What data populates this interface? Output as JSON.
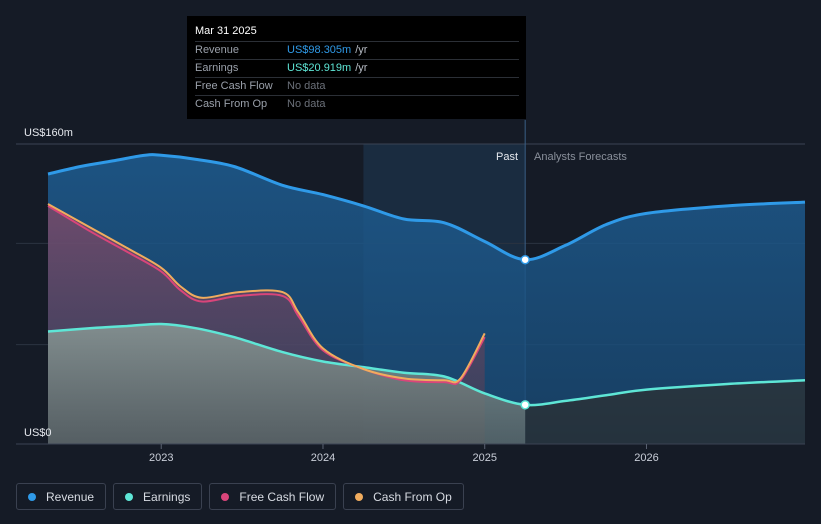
{
  "tooltip": {
    "date": "Mar 31 2025",
    "rows": [
      {
        "label": "Revenue",
        "value": "US$98.305m",
        "unit": "/yr",
        "color": "#2f9ae8"
      },
      {
        "label": "Earnings",
        "value": "US$20.919m",
        "unit": "/yr",
        "color": "#5ee6d6"
      },
      {
        "label": "Free Cash Flow",
        "value": "No data",
        "unit": "",
        "color": ""
      },
      {
        "label": "Cash From Op",
        "value": "No data",
        "unit": "",
        "color": ""
      }
    ]
  },
  "labels": {
    "past": "Past",
    "forecast": "Analysts Forecasts"
  },
  "legend": [
    {
      "label": "Revenue",
      "color": "#2f9ae8"
    },
    {
      "label": "Earnings",
      "color": "#5ee6d6"
    },
    {
      "label": "Free Cash Flow",
      "color": "#d9457a"
    },
    {
      "label": "Cash From Op",
      "color": "#f0ac5e"
    }
  ],
  "chart_data": {
    "type": "area",
    "y_top_label": "US$160m",
    "y_bottom_label": "US$0",
    "ylim": [
      0,
      160
    ],
    "xlim": [
      2022.3,
      2026.98
    ],
    "x_ticks": [
      {
        "value": 2023,
        "label": "2023"
      },
      {
        "value": 2024,
        "label": "2024"
      },
      {
        "value": 2025,
        "label": "2025"
      },
      {
        "value": 2026,
        "label": "2026"
      }
    ],
    "highlight_range": [
      2024.25,
      2025.25
    ],
    "past_divider": 2025.25,
    "series": [
      {
        "name": "Revenue",
        "color": "#2f9ae8",
        "points": [
          [
            2022.3,
            144
          ],
          [
            2022.5,
            148
          ],
          [
            2022.7,
            151
          ],
          [
            2022.9,
            154
          ],
          [
            2023.0,
            154
          ],
          [
            2023.2,
            152
          ],
          [
            2023.45,
            148
          ],
          [
            2023.75,
            138
          ],
          [
            2024.0,
            133
          ],
          [
            2024.25,
            127
          ],
          [
            2024.5,
            120
          ],
          [
            2024.75,
            118
          ],
          [
            2025.0,
            108
          ],
          [
            2025.25,
            98.3
          ],
          [
            2025.5,
            106
          ],
          [
            2025.75,
            117
          ],
          [
            2026.0,
            123
          ],
          [
            2026.5,
            127
          ],
          [
            2026.98,
            129
          ]
        ],
        "forecast_from": 2025.25
      },
      {
        "name": "Earnings",
        "color": "#5ee6d6",
        "points": [
          [
            2022.3,
            60
          ],
          [
            2022.6,
            62
          ],
          [
            2022.8,
            63
          ],
          [
            2023.0,
            64
          ],
          [
            2023.2,
            62
          ],
          [
            2023.45,
            57
          ],
          [
            2023.75,
            49
          ],
          [
            2024.0,
            44
          ],
          [
            2024.25,
            41
          ],
          [
            2024.5,
            38
          ],
          [
            2024.75,
            36
          ],
          [
            2025.0,
            27
          ],
          [
            2025.25,
            20.9
          ],
          [
            2025.5,
            23
          ],
          [
            2025.75,
            26
          ],
          [
            2026.0,
            29
          ],
          [
            2026.5,
            32
          ],
          [
            2026.98,
            34
          ]
        ],
        "forecast_from": 2025.25
      },
      {
        "name": "Free Cash Flow",
        "color": "#d9457a",
        "points": [
          [
            2022.3,
            127
          ],
          [
            2022.55,
            114
          ],
          [
            2022.8,
            102
          ],
          [
            2023.0,
            92
          ],
          [
            2023.12,
            82
          ],
          [
            2023.25,
            76
          ],
          [
            2023.48,
            79
          ],
          [
            2023.75,
            79
          ],
          [
            2023.85,
            68
          ],
          [
            2024.0,
            50
          ],
          [
            2024.25,
            40
          ],
          [
            2024.5,
            34
          ],
          [
            2024.75,
            33
          ],
          [
            2024.85,
            34
          ],
          [
            2025.0,
            57
          ]
        ]
      },
      {
        "name": "Cash From Op",
        "color": "#f0ac5e",
        "points": [
          [
            2022.3,
            128
          ],
          [
            2022.55,
            116
          ],
          [
            2022.8,
            104
          ],
          [
            2023.0,
            94
          ],
          [
            2023.12,
            84
          ],
          [
            2023.25,
            78
          ],
          [
            2023.48,
            81
          ],
          [
            2023.75,
            81
          ],
          [
            2023.85,
            70
          ],
          [
            2024.0,
            51
          ],
          [
            2024.25,
            40
          ],
          [
            2024.5,
            35
          ],
          [
            2024.75,
            34
          ],
          [
            2024.85,
            35
          ],
          [
            2025.0,
            59
          ]
        ]
      }
    ]
  }
}
